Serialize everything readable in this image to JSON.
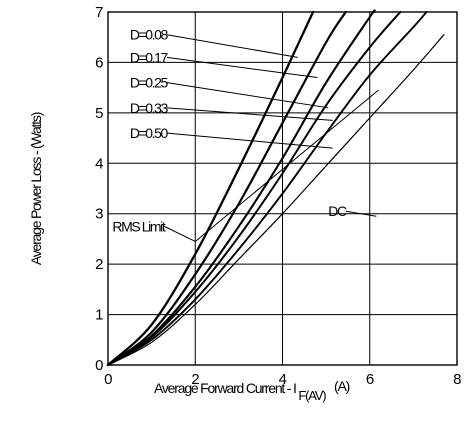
{
  "chart_data": {
    "type": "line",
    "xlabel": "Average Forward Current - I",
    "xlabel_subscript": "F(AV)",
    "xlabel_unit": "(A)",
    "ylabel": "Average Power Loss - (Watts)",
    "xlim": [
      0,
      8
    ],
    "ylim": [
      0,
      7
    ],
    "x_ticks": [
      "0",
      "2",
      "4",
      "6",
      "8"
    ],
    "y_ticks": [
      "0",
      "1",
      "2",
      "3",
      "4",
      "5",
      "6",
      "7"
    ],
    "grid": true,
    "series": [
      {
        "name": "D=0.08",
        "x": [
          0,
          1,
          2,
          3,
          4,
          4.7
        ],
        "y": [
          0,
          0.8,
          2.2,
          3.9,
          5.7,
          7.0
        ]
      },
      {
        "name": "D=0.17",
        "x": [
          0,
          1,
          2,
          3,
          4,
          5,
          5.45
        ],
        "y": [
          0,
          0.65,
          1.8,
          3.2,
          4.8,
          6.4,
          7.0
        ]
      },
      {
        "name": "D=0.25",
        "x": [
          0,
          1,
          2,
          3,
          4,
          5,
          6,
          6.1
        ],
        "y": [
          0,
          0.58,
          1.55,
          2.75,
          4.1,
          5.6,
          6.9,
          7.0
        ]
      },
      {
        "name": "D=0.33",
        "x": [
          0,
          1,
          2,
          3,
          4,
          5,
          6,
          6.7
        ],
        "y": [
          0,
          0.55,
          1.45,
          2.55,
          3.8,
          5.15,
          6.3,
          7.0
        ]
      },
      {
        "name": "D=0.50",
        "x": [
          0,
          1,
          2,
          3,
          4,
          5,
          6,
          7,
          7.3
        ],
        "y": [
          0,
          0.5,
          1.3,
          2.3,
          3.4,
          4.6,
          5.75,
          6.7,
          7.0
        ]
      },
      {
        "name": "DC",
        "x": [
          0,
          1,
          2,
          3,
          4,
          5,
          6,
          7,
          7.7
        ],
        "y": [
          0,
          0.45,
          1.2,
          2.1,
          3.0,
          3.95,
          4.9,
          5.85,
          6.55
        ]
      }
    ],
    "rms_limit": {
      "label": "RMS Limit",
      "x": [
        2.0,
        6.2
      ],
      "y": [
        2.45,
        5.45
      ]
    },
    "annotations": [
      {
        "label": "D=0.08",
        "series": "D=0.08",
        "label_pos": [
          0.5,
          6.45
        ],
        "point": [
          4.35,
          6.1
        ]
      },
      {
        "label": "D=0.17",
        "series": "D=0.17",
        "label_pos": [
          0.5,
          6.0
        ],
        "point": [
          4.8,
          5.7
        ]
      },
      {
        "label": "D=0.25",
        "series": "D=0.25",
        "label_pos": [
          0.5,
          5.5
        ],
        "point": [
          5.05,
          5.1
        ]
      },
      {
        "label": "D=0.33",
        "series": "D=0.33",
        "label_pos": [
          0.5,
          5.0
        ],
        "point": [
          5.15,
          4.85
        ]
      },
      {
        "label": "D=0.50",
        "series": "D=0.50",
        "label_pos": [
          0.5,
          4.5
        ],
        "point": [
          5.15,
          4.3
        ]
      },
      {
        "label": "DC",
        "series": "DC",
        "label_pos": [
          5.05,
          2.95
        ],
        "point": [
          6.15,
          2.95
        ]
      },
      {
        "label": "RMS Limit",
        "series": "RMS Limit",
        "label_pos": [
          0.1,
          2.65
        ],
        "point": [
          2.0,
          2.45
        ]
      }
    ]
  }
}
